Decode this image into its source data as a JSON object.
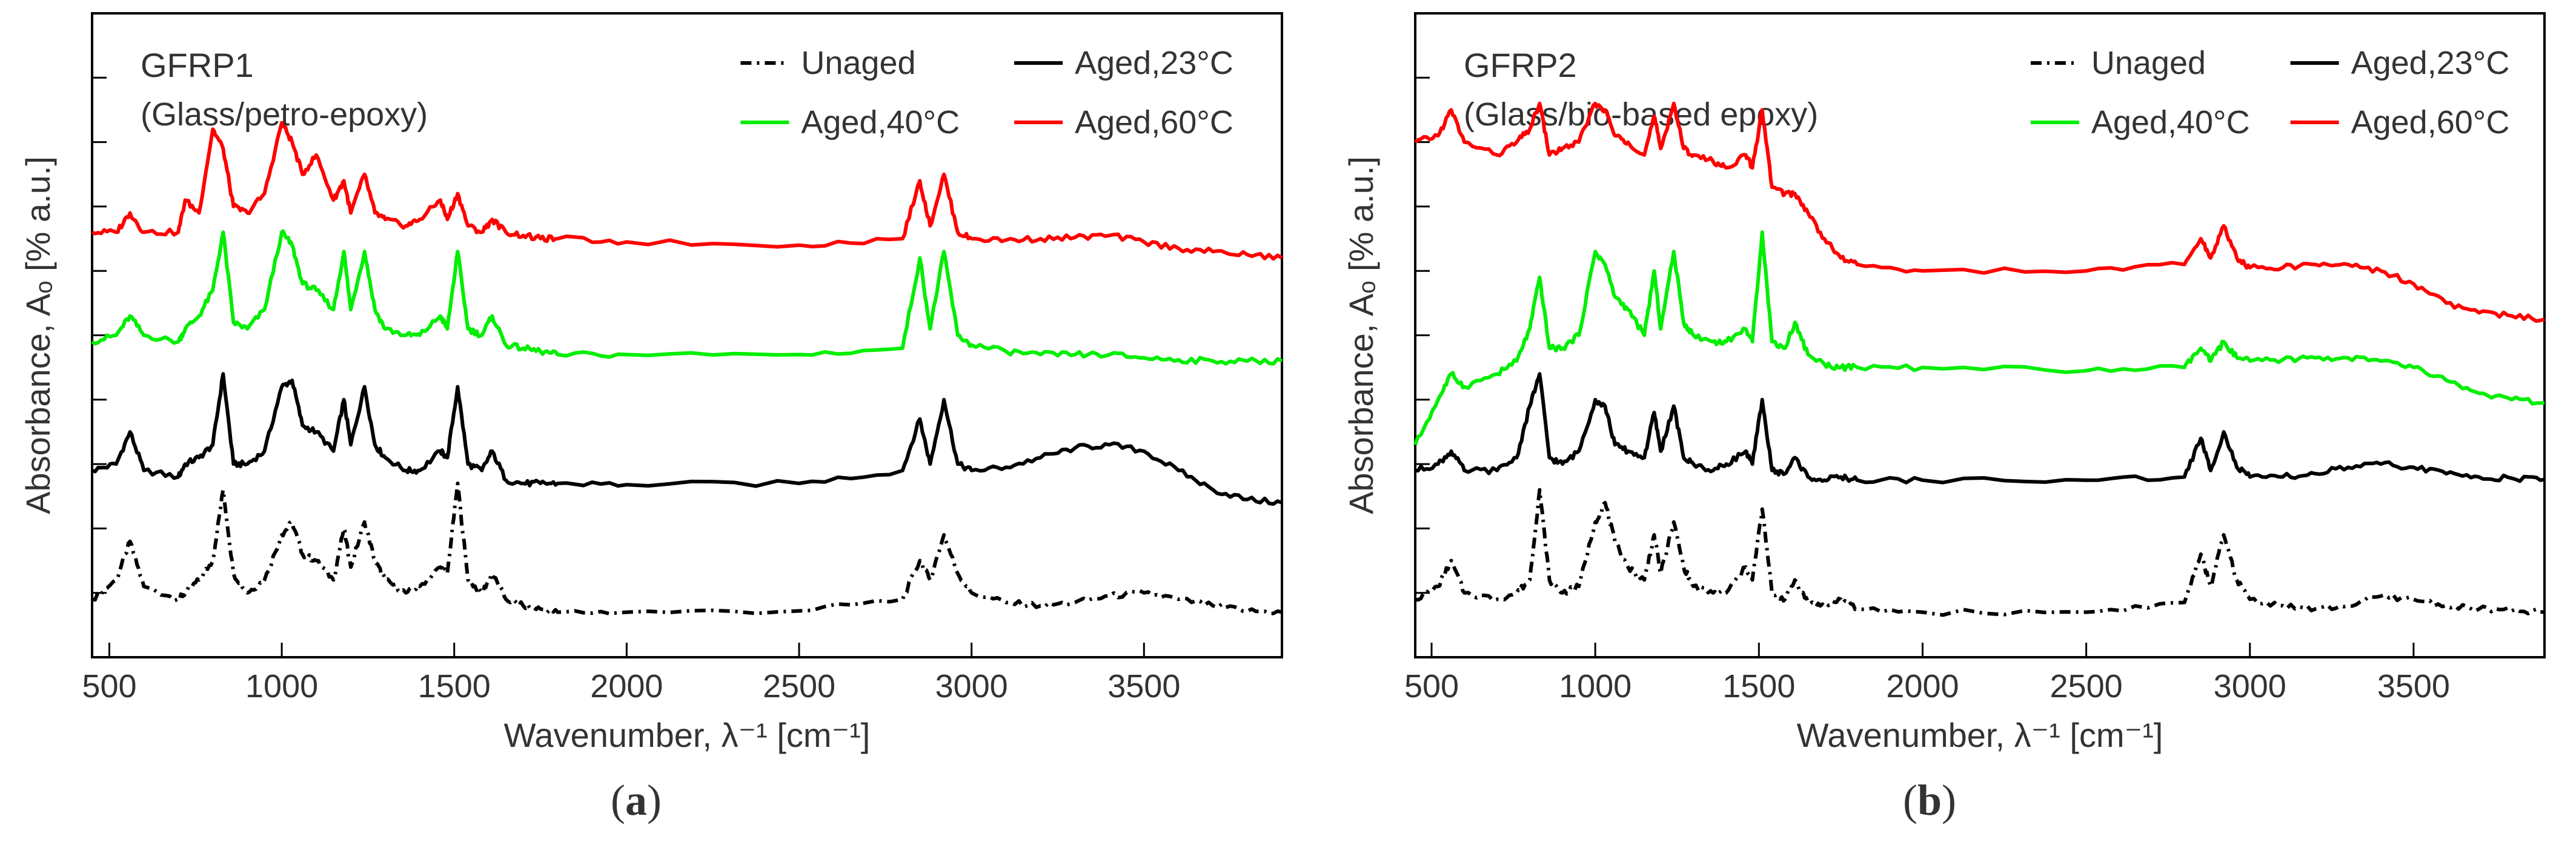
{
  "figure": {
    "panels": [
      {
        "label_open": "(",
        "label_letter": "a",
        "label_close": ")"
      },
      {
        "label_open": "(",
        "label_letter": "b",
        "label_close": ")"
      }
    ]
  },
  "chart_data": [
    {
      "type": "line",
      "title": "GFRP1",
      "subtitle": "(Glass/petro-epoxy)",
      "xlabel": "Wavenumber, λ⁻¹ [cm⁻¹]",
      "ylabel": "Absorbance, Aₒ [% a.u.]",
      "xlim": [
        450,
        3900
      ],
      "ylim": [
        0,
        10
      ],
      "xticks": [
        500,
        1000,
        1500,
        2000,
        2500,
        3000,
        3500
      ],
      "yticks_count": 11,
      "legend": [
        "Unaged",
        "Aged,23°C",
        "Aged,40°C",
        "Aged,60°C"
      ],
      "legend_position": "top-right",
      "series": [
        {
          "name": "Unaged",
          "color": "#000000",
          "style": "dashdot",
          "baseline": 0.7,
          "x": [
            450,
            520,
            560,
            600,
            700,
            720,
            760,
            800,
            830,
            860,
            900,
            950,
            1000,
            1030,
            1060,
            1100,
            1150,
            1180,
            1200,
            1240,
            1270,
            1300,
            1360,
            1400,
            1460,
            1480,
            1510,
            1540,
            1580,
            1610,
            1650,
            1700,
            1750,
            1800,
            2000,
            2500,
            2800,
            2850,
            2880,
            2920,
            2960,
            3000,
            3100,
            3200,
            3300,
            3400,
            3500,
            3600,
            3700,
            3800,
            3900
          ],
          "y": [
            0.9,
            1.2,
            1.8,
            1.1,
            0.9,
            1.0,
            1.2,
            1.5,
            2.6,
            1.3,
            1.0,
            1.2,
            1.9,
            2.1,
            1.6,
            1.5,
            1.2,
            2.0,
            1.4,
            2.1,
            1.5,
            1.2,
            1.0,
            1.1,
            1.4,
            1.3,
            2.7,
            1.2,
            1.0,
            1.3,
            0.9,
            0.8,
            0.75,
            0.7,
            0.7,
            0.72,
            0.9,
            1.5,
            1.2,
            1.9,
            1.3,
            1.0,
            0.85,
            0.8,
            0.85,
            0.95,
            1.0,
            0.9,
            0.8,
            0.72,
            0.7
          ]
        },
        {
          "name": "Aged,23°C",
          "color": "#000000",
          "style": "solid",
          "baseline": 2.2,
          "x": [
            450,
            520,
            560,
            600,
            700,
            720,
            760,
            800,
            830,
            860,
            900,
            950,
            1000,
            1030,
            1060,
            1100,
            1150,
            1180,
            1200,
            1240,
            1270,
            1300,
            1360,
            1400,
            1460,
            1480,
            1510,
            1540,
            1580,
            1610,
            1650,
            1700,
            1750,
            1800,
            2000,
            2500,
            2800,
            2850,
            2880,
            2920,
            2960,
            3000,
            3100,
            3200,
            3300,
            3400,
            3500,
            3600,
            3700,
            3800,
            3900
          ],
          "y": [
            2.9,
            3.0,
            3.5,
            2.9,
            2.8,
            3.0,
            3.1,
            3.3,
            4.4,
            3.0,
            3.0,
            3.2,
            4.2,
            4.3,
            3.6,
            3.5,
            3.2,
            4.0,
            3.3,
            4.2,
            3.3,
            3.1,
            2.9,
            2.9,
            3.2,
            3.1,
            4.2,
            3.0,
            2.9,
            3.2,
            2.75,
            2.7,
            2.7,
            2.7,
            2.68,
            2.7,
            2.9,
            3.7,
            3.0,
            4.0,
            3.0,
            2.9,
            2.95,
            3.1,
            3.25,
            3.3,
            3.2,
            2.9,
            2.6,
            2.45,
            2.4
          ]
        },
        {
          "name": "Aged,40°C",
          "color": "#00ee00",
          "style": "solid",
          "baseline": 4.6,
          "x": [
            450,
            520,
            560,
            600,
            700,
            720,
            760,
            800,
            830,
            860,
            900,
            950,
            1000,
            1030,
            1060,
            1100,
            1150,
            1180,
            1200,
            1240,
            1270,
            1300,
            1360,
            1400,
            1460,
            1480,
            1510,
            1540,
            1580,
            1610,
            1650,
            1700,
            1750,
            1800,
            2000,
            2500,
            2800,
            2850,
            2880,
            2920,
            2960,
            3000,
            3100,
            3200,
            3300,
            3400,
            3500,
            3600,
            3700,
            3800,
            3900
          ],
          "y": [
            4.9,
            5.0,
            5.3,
            5.0,
            4.9,
            5.1,
            5.3,
            5.7,
            6.6,
            5.2,
            5.1,
            5.4,
            6.6,
            6.4,
            5.8,
            5.7,
            5.4,
            6.3,
            5.4,
            6.3,
            5.4,
            5.1,
            5.0,
            5.0,
            5.3,
            5.1,
            6.3,
            5.1,
            5.0,
            5.3,
            4.85,
            4.8,
            4.75,
            4.7,
            4.7,
            4.7,
            4.8,
            6.2,
            5.1,
            6.3,
            5.0,
            4.85,
            4.75,
            4.7,
            4.7,
            4.7,
            4.65,
            4.62,
            4.6,
            4.6,
            4.6
          ]
        },
        {
          "name": "Aged,60°C",
          "color": "#ff0000",
          "style": "solid",
          "baseline": 6.2,
          "x": [
            450,
            520,
            560,
            600,
            700,
            720,
            760,
            800,
            830,
            860,
            900,
            950,
            1000,
            1030,
            1060,
            1100,
            1150,
            1180,
            1200,
            1240,
            1270,
            1300,
            1360,
            1400,
            1460,
            1480,
            1510,
            1540,
            1580,
            1610,
            1650,
            1700,
            1750,
            1800,
            2000,
            2500,
            2800,
            2850,
            2880,
            2920,
            2960,
            3000,
            3100,
            3200,
            3300,
            3400,
            3500,
            3600,
            3700,
            3800,
            3900
          ],
          "y": [
            6.6,
            6.6,
            6.9,
            6.6,
            6.6,
            7.1,
            6.9,
            8.2,
            7.9,
            7.0,
            6.9,
            7.2,
            8.3,
            8.0,
            7.5,
            7.8,
            7.1,
            7.4,
            6.9,
            7.5,
            6.9,
            6.8,
            6.7,
            6.8,
            7.1,
            6.8,
            7.2,
            6.7,
            6.6,
            6.8,
            6.6,
            6.55,
            6.5,
            6.5,
            6.45,
            6.4,
            6.5,
            7.4,
            6.7,
            7.5,
            6.6,
            6.5,
            6.48,
            6.5,
            6.52,
            6.55,
            6.45,
            6.35,
            6.3,
            6.25,
            6.2
          ]
        }
      ]
    },
    {
      "type": "line",
      "title": "GFRP2",
      "subtitle": "(Glass/bio-based epoxy)",
      "xlabel": "Wavenumber, λ⁻¹ [cm⁻¹]",
      "ylabel": "Absorbance, Aₒ [% a.u.]",
      "xlim": [
        450,
        3900
      ],
      "ylim": [
        0,
        10
      ],
      "xticks": [
        500,
        1000,
        1500,
        2000,
        2500,
        3000,
        3500
      ],
      "yticks_count": 11,
      "legend": [
        "Unaged",
        "Aged,23°C",
        "Aged,40°C",
        "Aged,60°C"
      ],
      "legend_position": "top-right",
      "series": [
        {
          "name": "Unaged",
          "color": "#000000",
          "style": "dashdot",
          "baseline": 0.7,
          "x": [
            450,
            520,
            560,
            600,
            700,
            760,
            800,
            830,
            860,
            900,
            950,
            1000,
            1030,
            1060,
            1100,
            1150,
            1180,
            1200,
            1240,
            1270,
            1300,
            1360,
            1400,
            1460,
            1480,
            1510,
            1540,
            1580,
            1610,
            1650,
            1700,
            1750,
            1800,
            2000,
            2500,
            2800,
            2850,
            2880,
            2920,
            2960,
            3000,
            3100,
            3200,
            3300,
            3400,
            3500,
            3600,
            3700,
            3800,
            3900
          ],
          "y": [
            0.9,
            1.1,
            1.5,
            1.0,
            0.9,
            1.0,
            1.2,
            2.6,
            1.2,
            1.0,
            1.1,
            2.1,
            2.4,
            1.8,
            1.4,
            1.2,
            1.9,
            1.3,
            2.1,
            1.4,
            1.1,
            1.0,
            1.0,
            1.4,
            1.2,
            2.3,
            1.0,
            0.9,
            1.2,
            0.85,
            0.8,
            0.9,
            0.75,
            0.7,
            0.7,
            0.85,
            1.6,
            1.1,
            1.9,
            1.2,
            0.9,
            0.8,
            0.75,
            0.8,
            0.95,
            0.9,
            0.8,
            0.75,
            0.72,
            0.7
          ]
        },
        {
          "name": "Aged,23°C",
          "color": "#000000",
          "style": "solid",
          "baseline": 2.5,
          "x": [
            450,
            520,
            560,
            600,
            700,
            760,
            800,
            830,
            860,
            900,
            950,
            1000,
            1030,
            1060,
            1100,
            1150,
            1180,
            1200,
            1240,
            1270,
            1300,
            1360,
            1400,
            1460,
            1480,
            1510,
            1540,
            1580,
            1610,
            1650,
            1700,
            1750,
            1800,
            2000,
            2500,
            2800,
            2850,
            2880,
            2920,
            2960,
            3000,
            3100,
            3200,
            3300,
            3400,
            3500,
            3600,
            3700,
            3800,
            3900
          ],
          "y": [
            2.9,
            3.0,
            3.2,
            2.9,
            2.9,
            3.1,
            3.9,
            4.4,
            3.1,
            3.0,
            3.2,
            4.0,
            3.9,
            3.3,
            3.2,
            3.1,
            3.8,
            3.2,
            3.9,
            3.1,
            3.0,
            2.9,
            3.0,
            3.2,
            3.0,
            4.0,
            2.9,
            2.85,
            3.1,
            2.8,
            2.75,
            2.8,
            2.75,
            2.75,
            2.75,
            2.8,
            3.4,
            2.9,
            3.5,
            2.95,
            2.8,
            2.8,
            2.85,
            2.95,
            3.0,
            2.95,
            2.85,
            2.8,
            2.78,
            2.76
          ]
        },
        {
          "name": "Aged,40°C",
          "color": "#00ee00",
          "style": "solid",
          "baseline": 4.6,
          "x": [
            450,
            520,
            560,
            600,
            700,
            760,
            800,
            830,
            860,
            900,
            950,
            1000,
            1030,
            1060,
            1100,
            1150,
            1180,
            1200,
            1240,
            1270,
            1300,
            1360,
            1400,
            1460,
            1480,
            1510,
            1540,
            1580,
            1610,
            1650,
            1700,
            1750,
            1800,
            2000,
            2500,
            2800,
            2850,
            2880,
            2920,
            2960,
            3000,
            3100,
            3200,
            3300,
            3400,
            3500,
            3600,
            3700,
            3800,
            3900
          ],
          "y": [
            3.3,
            4.0,
            4.4,
            4.2,
            4.4,
            4.6,
            5.1,
            5.9,
            4.8,
            4.8,
            5.0,
            6.3,
            6.1,
            5.6,
            5.4,
            5.0,
            6.0,
            5.1,
            6.3,
            5.2,
            5.0,
            4.9,
            4.9,
            5.1,
            4.9,
            6.6,
            4.9,
            4.8,
            5.2,
            4.7,
            4.55,
            4.5,
            4.5,
            4.5,
            4.45,
            4.5,
            4.8,
            4.6,
            4.9,
            4.65,
            4.6,
            4.62,
            4.65,
            4.65,
            4.6,
            4.5,
            4.3,
            4.1,
            4.0,
            3.95
          ]
        },
        {
          "name": "Aged,60°C",
          "color": "#ff0000",
          "style": "solid",
          "baseline": 7.6,
          "x": [
            450,
            520,
            560,
            600,
            700,
            760,
            800,
            830,
            860,
            900,
            950,
            1000,
            1030,
            1060,
            1100,
            1150,
            1180,
            1200,
            1240,
            1270,
            1300,
            1360,
            1400,
            1460,
            1480,
            1510,
            1540,
            1580,
            1610,
            1650,
            1700,
            1750,
            1800,
            2000,
            2500,
            2800,
            2850,
            2880,
            2920,
            2960,
            3000,
            3100,
            3200,
            3300,
            3400,
            3500,
            3600,
            3700,
            3800,
            3900
          ],
          "y": [
            8.0,
            8.1,
            8.5,
            8.0,
            7.8,
            8.0,
            8.2,
            8.6,
            7.8,
            7.9,
            8.0,
            8.6,
            8.5,
            8.1,
            8.0,
            7.8,
            8.4,
            7.9,
            8.6,
            7.9,
            7.8,
            7.7,
            7.6,
            7.8,
            7.6,
            8.5,
            7.3,
            7.2,
            7.2,
            6.9,
            6.5,
            6.2,
            6.1,
            6.0,
            6.0,
            6.1,
            6.5,
            6.2,
            6.7,
            6.2,
            6.05,
            6.05,
            6.1,
            6.1,
            6.0,
            5.8,
            5.5,
            5.35,
            5.3,
            5.25
          ]
        }
      ]
    }
  ]
}
